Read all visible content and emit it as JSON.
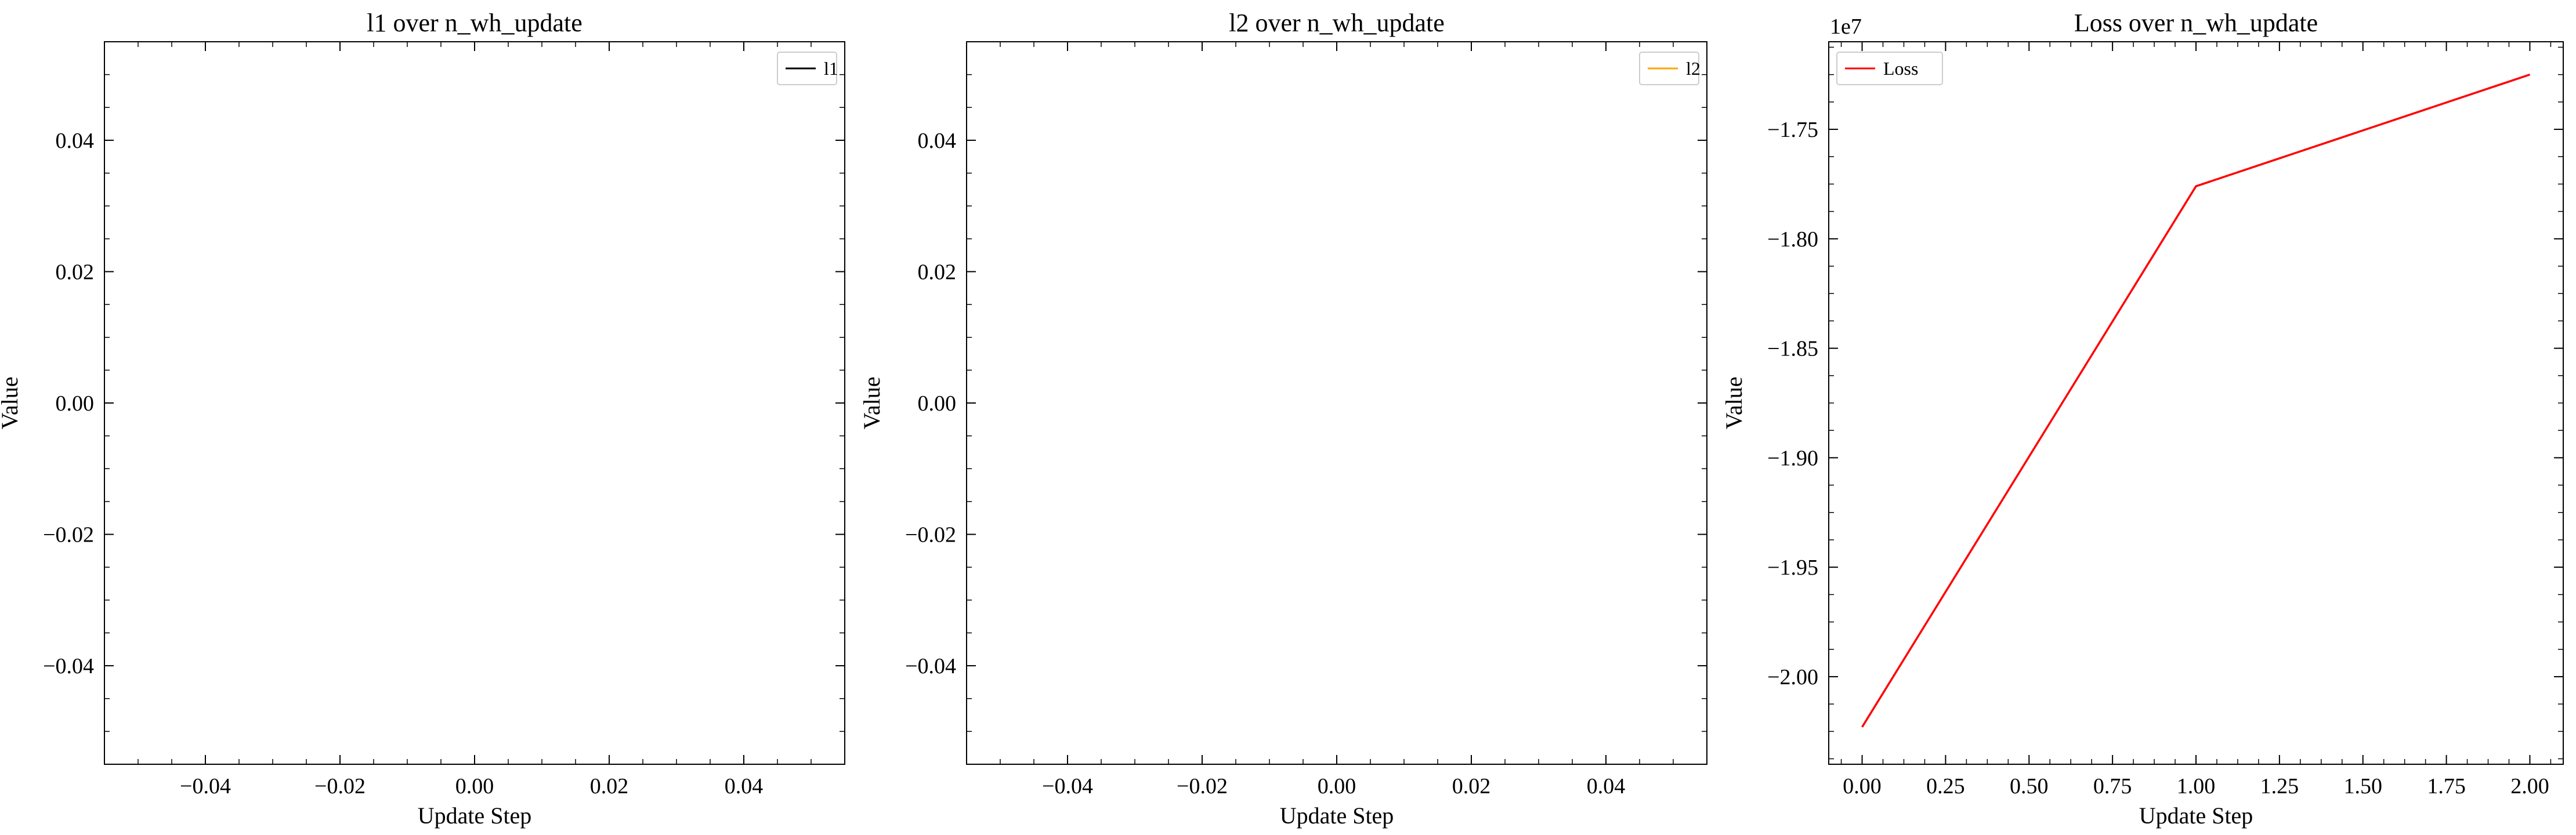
{
  "figure": {
    "panels": [
      {
        "title": "l1 over n_wh_update",
        "xlabel": "Update Step",
        "ylabel": "Value"
      },
      {
        "title": "l2 over n_wh_update",
        "xlabel": "Update Step",
        "ylabel": "Value"
      },
      {
        "title": "Loss over n_wh_update",
        "xlabel": "Update Step",
        "ylabel": "Value"
      }
    ]
  },
  "chart_data": [
    {
      "type": "line",
      "title": "l1 over n_wh_update",
      "xlabel": "Update Step",
      "ylabel": "Value",
      "xlim": [
        -0.055,
        0.055
      ],
      "ylim": [
        -0.055,
        0.055
      ],
      "xticks": [
        -0.04,
        -0.02,
        0.0,
        0.02,
        0.04
      ],
      "xtick_labels": [
        "−0.04",
        "−0.02",
        "0.00",
        "0.02",
        "0.04"
      ],
      "yticks": [
        -0.04,
        -0.02,
        0.0,
        0.02,
        0.04
      ],
      "ytick_labels": [
        "−0.04",
        "−0.02",
        "0.00",
        "0.02",
        "0.04"
      ],
      "yoffset": "",
      "series": [
        {
          "name": "l1",
          "color": "#000000",
          "x": [],
          "y": []
        }
      ],
      "legend": "upper right",
      "grid": false
    },
    {
      "type": "line",
      "title": "l2 over n_wh_update",
      "xlabel": "Update Step",
      "ylabel": "Value",
      "xlim": [
        -0.055,
        0.055
      ],
      "ylim": [
        -0.055,
        0.055
      ],
      "xticks": [
        -0.04,
        -0.02,
        0.0,
        0.02,
        0.04
      ],
      "xtick_labels": [
        "−0.04",
        "−0.02",
        "0.00",
        "0.02",
        "0.04"
      ],
      "yticks": [
        -0.04,
        -0.02,
        0.0,
        0.02,
        0.04
      ],
      "ytick_labels": [
        "−0.04",
        "−0.02",
        "0.00",
        "0.02",
        "0.04"
      ],
      "yoffset": "",
      "series": [
        {
          "name": "l2",
          "color": "#ffa500",
          "x": [],
          "y": []
        }
      ],
      "legend": "upper right",
      "grid": false
    },
    {
      "type": "line",
      "title": "Loss over n_wh_update",
      "xlabel": "Update Step",
      "ylabel": "Value",
      "xlim": [
        -0.1,
        2.1
      ],
      "ylim": [
        -2.04,
        -1.71
      ],
      "xticks": [
        0.0,
        0.25,
        0.5,
        0.75,
        1.0,
        1.25,
        1.5,
        1.75,
        2.0
      ],
      "xtick_labels": [
        "0.00",
        "0.25",
        "0.50",
        "0.75",
        "1.00",
        "1.25",
        "1.50",
        "1.75",
        "2.00"
      ],
      "yticks": [
        -2.0,
        -1.95,
        -1.9,
        -1.85,
        -1.8,
        -1.75
      ],
      "ytick_labels": [
        "−2.00",
        "−1.95",
        "−1.90",
        "−1.85",
        "−1.80",
        "−1.75"
      ],
      "yoffset": "1e7",
      "series": [
        {
          "name": "Loss",
          "color": "#ff0000",
          "x": [
            0,
            1,
            2
          ],
          "y": [
            -2.023,
            -1.776,
            -1.725
          ]
        }
      ],
      "legend": "upper left",
      "grid": false
    }
  ]
}
